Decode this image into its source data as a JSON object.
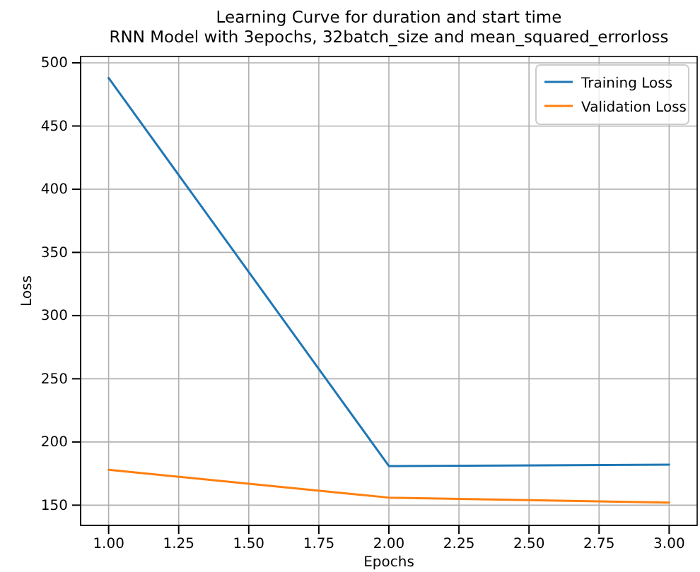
{
  "chart_data": {
    "type": "line",
    "title": "Learning Curve for duration and start time\nRNN Model with 3epochs, 32batch_size and mean_squared_errorloss",
    "xlabel": "Epochs",
    "ylabel": "Loss",
    "x": [
      1,
      2,
      3
    ],
    "series": [
      {
        "name": "Training Loss",
        "color": "#1f77b4",
        "values": [
          488,
          181,
          182
        ]
      },
      {
        "name": "Validation Loss",
        "color": "#ff7f0e",
        "values": [
          178,
          156,
          152
        ]
      }
    ],
    "xlim": [
      0.9,
      3.1
    ],
    "xticks": [
      {
        "value": 1,
        "label": "1.00"
      },
      {
        "value": 1.25,
        "label": "1.25"
      },
      {
        "value": 1.5,
        "label": "1.50"
      },
      {
        "value": 1.75,
        "label": "1.75"
      },
      {
        "value": 2,
        "label": "2.00"
      },
      {
        "value": 2.25,
        "label": "2.25"
      },
      {
        "value": 2.5,
        "label": "2.50"
      },
      {
        "value": 2.75,
        "label": "2.75"
      },
      {
        "value": 3,
        "label": "3.00"
      }
    ],
    "ylim": [
      134,
      505
    ],
    "yticks": [
      150,
      200,
      250,
      300,
      350,
      400,
      450,
      500
    ],
    "grid": true,
    "legend": "top right",
    "marker": "none",
    "line_style": "solid"
  }
}
